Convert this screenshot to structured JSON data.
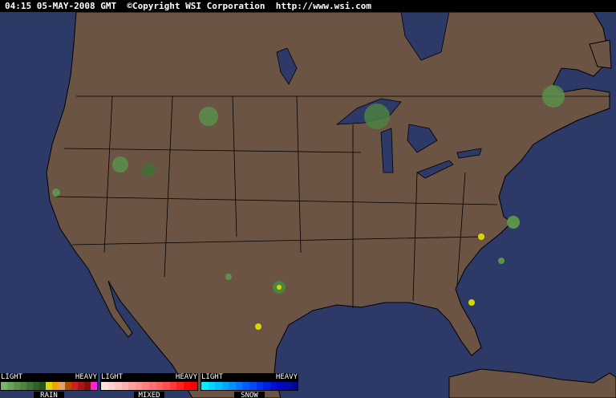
{
  "header": {
    "text": "04:15 05-MAY-2008 GMT  ©Copyright WSI Corporation  http://www.wsi.com"
  },
  "colors": {
    "ocean": "#2d3a68",
    "land": "#6b5444",
    "border": "#000000"
  },
  "legend": [
    {
      "name": "RAIN",
      "light": "LIGHT",
      "heavy": "HEAVY",
      "colors": [
        "#7cb36a",
        "#6aa35a",
        "#5a944c",
        "#4c8440",
        "#3e7334",
        "#316328",
        "#24531e",
        "#d8d800",
        "#f0a000",
        "#e0a070",
        "#b05000",
        "#d02020",
        "#a81818",
        "#881010",
        "#ff20e0"
      ]
    },
    {
      "name": "MIXED",
      "light": "LIGHT",
      "heavy": "HEAVY",
      "colors": [
        "#ffe0e0",
        "#ffd0d0",
        "#ffc0c0",
        "#ffb0b0",
        "#ffa0a0",
        "#ff9090",
        "#ff8080",
        "#ff7070",
        "#ff6060",
        "#ff5050",
        "#ff3838",
        "#ff2020",
        "#ff0808",
        "#ff0000"
      ]
    },
    {
      "name": "SNOW",
      "light": "LIGHT",
      "heavy": "HEAVY",
      "colors": [
        "#00f0ff",
        "#00d8ff",
        "#00c0ff",
        "#00a8ff",
        "#0090ff",
        "#0078ff",
        "#0060ff",
        "#0048f8",
        "#0030f0",
        "#0020e0",
        "#0010d0",
        "#0008c0",
        "#000cb0",
        "#000890"
      ]
    }
  ]
}
